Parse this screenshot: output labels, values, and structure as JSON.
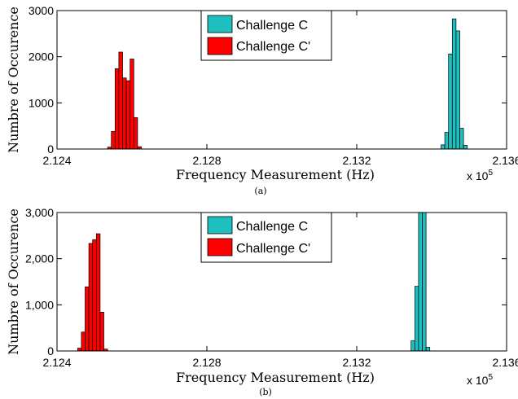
{
  "chart_data": [
    {
      "type": "bar",
      "panel_label": "(a)",
      "xlabel": "Frequency Measurement (Hz)",
      "ylabel": "Numbre of Occurence",
      "x_scale_label": "x 10",
      "x_scale_exp": "5",
      "xlim": [
        2.124,
        2.136
      ],
      "ylim": [
        0,
        3000
      ],
      "xticks": [
        "2.124",
        "2.128",
        "2.132",
        "2.136"
      ],
      "yticks": [
        "0",
        "1000",
        "2000",
        "3000"
      ],
      "grid": false,
      "legend_position": "top-center",
      "bin_width": 0.0001,
      "series": [
        {
          "name": "Challenge C",
          "color": "#1FBFBF",
          "bins": [
            {
              "x": 2.1343,
              "y": 90
            },
            {
              "x": 2.1344,
              "y": 360
            },
            {
              "x": 2.1345,
              "y": 2060
            },
            {
              "x": 2.1346,
              "y": 2820
            },
            {
              "x": 2.1347,
              "y": 2560
            },
            {
              "x": 2.1348,
              "y": 450
            },
            {
              "x": 2.1349,
              "y": 80
            }
          ]
        },
        {
          "name": "Challenge C'",
          "color": "#FF0000",
          "bins": [
            {
              "x": 2.1254,
              "y": 40
            },
            {
              "x": 2.1255,
              "y": 380
            },
            {
              "x": 2.1256,
              "y": 1740
            },
            {
              "x": 2.1257,
              "y": 2100
            },
            {
              "x": 2.1258,
              "y": 1540
            },
            {
              "x": 2.1259,
              "y": 1480
            },
            {
              "x": 2.126,
              "y": 1950
            },
            {
              "x": 2.1261,
              "y": 680
            },
            {
              "x": 2.1262,
              "y": 50
            }
          ]
        }
      ]
    },
    {
      "type": "bar",
      "panel_label": "(b)",
      "xlabel": "Frequency Measurement (Hz)",
      "ylabel": "Numbre of Occurence",
      "x_scale_label": "x 10",
      "x_scale_exp": "5",
      "xlim": [
        2.124,
        2.136
      ],
      "ylim": [
        0,
        3000
      ],
      "xticks": [
        "2.124",
        "2.128",
        "2.132",
        "2.136"
      ],
      "yticks": [
        "0",
        "1,000",
        "2,000",
        "3,000"
      ],
      "grid": false,
      "legend_position": "top-center",
      "bin_width": 0.0001,
      "series": [
        {
          "name": "Challenge C",
          "color": "#1FBFBF",
          "bins": [
            {
              "x": 2.1335,
              "y": 220
            },
            {
              "x": 2.1336,
              "y": 1400
            },
            {
              "x": 2.1337,
              "y": 3000
            },
            {
              "x": 2.1338,
              "y": 3000
            },
            {
              "x": 2.1339,
              "y": 80
            }
          ]
        },
        {
          "name": "Challenge C'",
          "color": "#FF0000",
          "bins": [
            {
              "x": 2.1246,
              "y": 60
            },
            {
              "x": 2.1247,
              "y": 410
            },
            {
              "x": 2.1248,
              "y": 1390
            },
            {
              "x": 2.1249,
              "y": 2330
            },
            {
              "x": 2.125,
              "y": 2410
            },
            {
              "x": 2.1251,
              "y": 2540
            },
            {
              "x": 2.1252,
              "y": 840
            },
            {
              "x": 2.1253,
              "y": 40
            }
          ]
        }
      ]
    }
  ]
}
